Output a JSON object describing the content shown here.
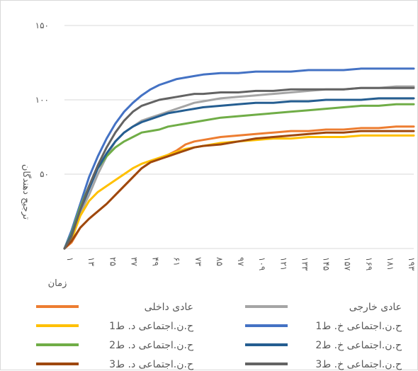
{
  "chart_data": {
    "type": "line",
    "title": "",
    "ylabel": "ترجیح دهندگان",
    "xlabel": "زمان",
    "ylim": [
      0,
      150
    ],
    "yticks": [
      {
        "value": 0,
        "label": ""
      },
      {
        "value": 50,
        "label": "۵۰"
      },
      {
        "value": 100,
        "label": "۱۰۰"
      },
      {
        "value": 150,
        "label": "۱۵۰"
      }
    ],
    "xticks": [
      "۱",
      "۱۳",
      "۲۵",
      "۳۷",
      "۴۹",
      "۶۱",
      "۷۳",
      "۸۵",
      "۹۷",
      "۱۰۹",
      "۱۲۱",
      "۱۳۳",
      "۱۴۵",
      "۱۵۷",
      "۱۶۹",
      "۱۸۱",
      "۱۹۳"
    ],
    "x": [
      1,
      5,
      10,
      15,
      20,
      25,
      30,
      35,
      40,
      45,
      50,
      55,
      60,
      65,
      70,
      75,
      80,
      90,
      100,
      110,
      120,
      130,
      140,
      150,
      160,
      170,
      180,
      190,
      200
    ],
    "grid": true,
    "legend_position": "bottom",
    "series": [
      {
        "name": "عادی داخلی",
        "color": "#ed7d31",
        "values": [
          0,
          4,
          14,
          20,
          25,
          30,
          36,
          42,
          48,
          54,
          58,
          60,
          63,
          66,
          70,
          72,
          73,
          75,
          76,
          77,
          78,
          79,
          79,
          80,
          80,
          81,
          81,
          82,
          82
        ]
      },
      {
        "name": "عادی خارجی",
        "color": "#a5a5a5",
        "values": [
          0,
          8,
          24,
          36,
          50,
          62,
          72,
          78,
          82,
          86,
          88,
          90,
          92,
          94,
          96,
          98,
          99,
          101,
          102,
          103,
          104,
          105,
          106,
          107,
          107,
          108,
          108,
          109,
          109
        ]
      },
      {
        "name": "ح.ن.اجتماعی د. ط1",
        "color": "#ffc000",
        "values": [
          0,
          6,
          22,
          32,
          38,
          42,
          46,
          50,
          54,
          57,
          59,
          61,
          63,
          65,
          67,
          68,
          69,
          71,
          72,
          73,
          74,
          74,
          75,
          75,
          75,
          76,
          76,
          76,
          76
        ]
      },
      {
        "name": "ح.ن.اجتماعی خ. ط1",
        "color": "#4472c4",
        "values": [
          0,
          12,
          30,
          48,
          62,
          74,
          84,
          92,
          98,
          103,
          107,
          110,
          112,
          114,
          115,
          116,
          117,
          118,
          118,
          119,
          119,
          119,
          120,
          120,
          120,
          121,
          121,
          121,
          121
        ]
      },
      {
        "name": "ح.ن.اجتماعی د. ط2",
        "color": "#70ad47",
        "values": [
          0,
          10,
          28,
          42,
          54,
          62,
          68,
          72,
          75,
          78,
          79,
          80,
          82,
          83,
          84,
          85,
          86,
          88,
          89,
          90,
          91,
          92,
          93,
          94,
          95,
          96,
          96,
          97,
          97
        ]
      },
      {
        "name": "ح.ن.اجتماعی خ. ط2",
        "color": "#255e91",
        "values": [
          0,
          9,
          26,
          40,
          54,
          64,
          72,
          78,
          82,
          85,
          87,
          89,
          91,
          92,
          93,
          94,
          95,
          96,
          97,
          98,
          98,
          99,
          99,
          100,
          100,
          100,
          101,
          101,
          101
        ]
      },
      {
        "name": "ح.ن.اجتماعی د. ط3",
        "color": "#9e480e",
        "values": [
          0,
          5,
          14,
          20,
          25,
          30,
          36,
          42,
          48,
          54,
          58,
          60,
          62,
          64,
          66,
          68,
          69,
          70,
          72,
          74,
          75,
          76,
          77,
          78,
          78,
          79,
          79,
          79,
          79
        ]
      },
      {
        "name": "ح.ن.اجتماعی خ. ط3",
        "color": "#636363",
        "values": [
          0,
          8,
          26,
          42,
          56,
          68,
          78,
          86,
          92,
          96,
          98,
          100,
          101,
          102,
          103,
          104,
          104,
          105,
          105,
          106,
          106,
          107,
          107,
          107,
          107,
          108,
          108,
          108,
          108
        ]
      }
    ]
  }
}
